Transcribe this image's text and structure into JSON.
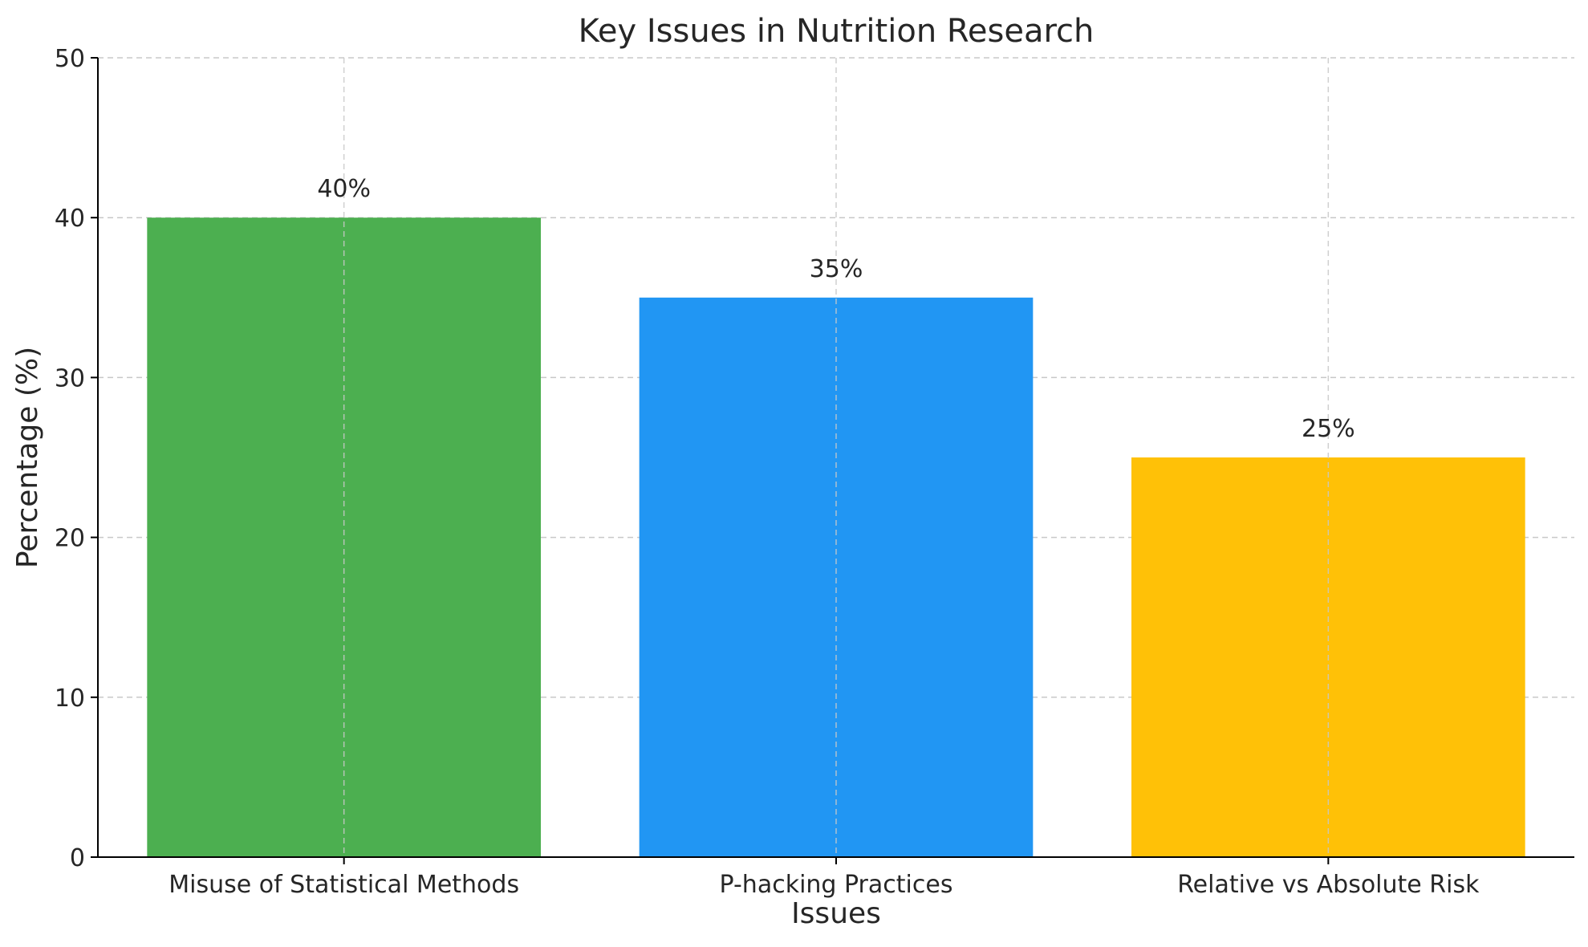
{
  "chart_data": {
    "type": "bar",
    "title": "Key Issues in Nutrition Research",
    "xlabel": "Issues",
    "ylabel": "Percentage (%)",
    "categories": [
      "Misuse of Statistical Methods",
      "P-hacking Practices",
      "Relative vs Absolute Risk"
    ],
    "values": [
      40,
      35,
      25
    ],
    "value_labels": [
      "40%",
      "35%",
      "25%"
    ],
    "bar_colors": [
      "#4caf50",
      "#2196f3",
      "#ffc107"
    ],
    "ylim": [
      0,
      50
    ],
    "yticks": [
      0,
      10,
      20,
      30,
      40,
      50
    ],
    "ytick_labels": [
      "0",
      "10",
      "20",
      "30",
      "40",
      "50"
    ],
    "grid": true,
    "grid_style": "dashed",
    "legend": false
  }
}
